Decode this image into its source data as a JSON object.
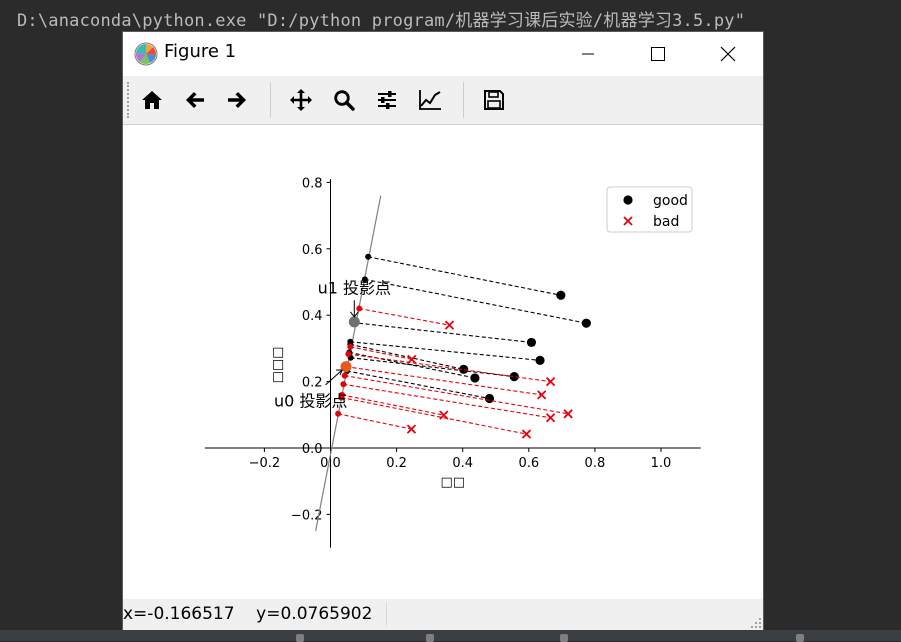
{
  "console": {
    "command_line": "D:\\anaconda\\python.exe \"D:/python program/机器学习课后实验/机器学习3.5.py\""
  },
  "window": {
    "title": "Figure 1",
    "icon": "matplotlib-logo-icon",
    "controls": [
      "minimize-icon",
      "maximize-icon",
      "close-icon"
    ]
  },
  "toolbar": {
    "buttons": [
      {
        "name": "home",
        "icon": "home-icon"
      },
      {
        "name": "back",
        "icon": "arrow-left-icon"
      },
      {
        "name": "forward",
        "icon": "arrow-right-icon"
      },
      {
        "name": "pan",
        "icon": "move-icon"
      },
      {
        "name": "zoom",
        "icon": "magnifier-icon"
      },
      {
        "name": "configure-subplots",
        "icon": "sliders-icon"
      },
      {
        "name": "edit-axis",
        "icon": "line-chart-icon"
      },
      {
        "name": "save",
        "icon": "floppy-disk-icon"
      }
    ]
  },
  "status": {
    "coordinates": "x=-0.166517    y=0.0765902"
  },
  "chart_data": {
    "type": "scatter",
    "title": "",
    "xlabel": "□□",
    "ylabel": "□□□",
    "xlim": [
      -0.38,
      1.12
    ],
    "ylim": [
      -0.3,
      0.81
    ],
    "xticks": [
      -0.2,
      0.0,
      0.2,
      0.4,
      0.6,
      0.8,
      1.0
    ],
    "yticks": [
      -0.2,
      0.0,
      0.2,
      0.4,
      0.6,
      0.8
    ],
    "xtick_labels": [
      "−0.2",
      "0.0",
      "0.2",
      "0.4",
      "0.6",
      "0.8",
      "1.0"
    ],
    "ytick_labels": [
      "−0.2",
      "0.0",
      "0.2",
      "0.4",
      "0.6",
      "0.8"
    ],
    "grid": false,
    "legend_position": "top-right",
    "projection_line": {
      "color": "#808080",
      "x": [
        -0.045,
        0.152
      ],
      "y": [
        -0.25,
        0.76
      ]
    },
    "series": [
      {
        "name": "good",
        "marker": "o",
        "color": "#000000",
        "points": [
          [
            0.697,
            0.46
          ],
          [
            0.774,
            0.376
          ],
          [
            0.608,
            0.318
          ],
          [
            0.634,
            0.264
          ],
          [
            0.403,
            0.237
          ],
          [
            0.437,
            0.211
          ],
          [
            0.556,
            0.215
          ],
          [
            0.481,
            0.149
          ]
        ],
        "projections": [
          [
            0.114,
            0.576
          ],
          [
            0.104,
            0.508
          ],
          [
            0.067,
            0.378
          ],
          [
            0.06,
            0.32
          ],
          [
            0.06,
            0.312
          ],
          [
            0.057,
            0.288
          ],
          [
            0.061,
            0.272
          ],
          [
            0.05,
            0.232
          ]
        ]
      },
      {
        "name": "bad",
        "marker": "x",
        "color": "#e8000b",
        "points": [
          [
            0.36,
            0.37
          ],
          [
            0.246,
            0.267
          ],
          [
            0.666,
            0.2
          ],
          [
            0.639,
            0.16
          ],
          [
            0.719,
            0.103
          ],
          [
            0.666,
            0.091
          ],
          [
            0.343,
            0.099
          ],
          [
            0.593,
            0.042
          ],
          [
            0.245,
            0.057
          ]
        ],
        "projections": [
          [
            0.087,
            0.42
          ],
          [
            0.06,
            0.305
          ],
          [
            0.054,
            0.283
          ],
          [
            0.047,
            0.245
          ],
          [
            0.043,
            0.218
          ],
          [
            0.039,
            0.192
          ],
          [
            0.035,
            0.16
          ],
          [
            0.033,
            0.152
          ],
          [
            0.023,
            0.103
          ]
        ]
      }
    ],
    "means": [
      {
        "label": "u0 投影点",
        "x": 0.047,
        "y": 0.245,
        "color": "#e85a1a"
      },
      {
        "label": "u1 投影点",
        "x": 0.072,
        "y": 0.38,
        "color": "#707070"
      }
    ]
  }
}
